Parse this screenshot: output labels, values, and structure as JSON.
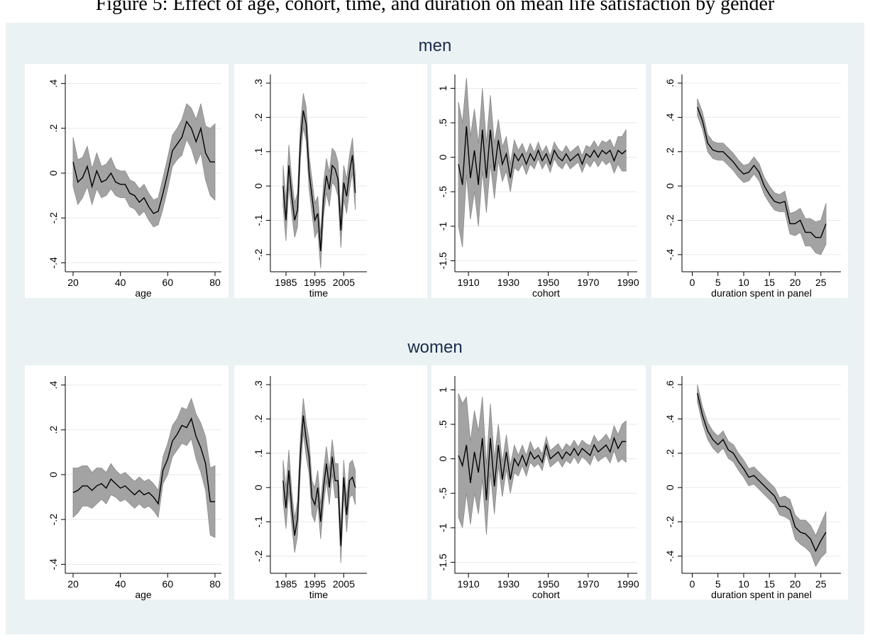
{
  "figure_title": "Figure 5: Effect of age, cohort, time, and duration on mean life satisfaction by gender",
  "row_titles": [
    "men",
    "women"
  ],
  "chart_data": [
    {
      "type": "line",
      "xlabel": "age",
      "color": "#000000",
      "band_color": "#a3a3a3",
      "grid": true,
      "x": [
        20,
        22,
        24,
        26,
        28,
        30,
        32,
        34,
        36,
        38,
        40,
        42,
        44,
        46,
        48,
        50,
        52,
        54,
        56,
        58,
        60,
        62,
        64,
        66,
        68,
        70,
        72,
        74,
        76,
        78,
        80
      ],
      "values": [
        0.05,
        -0.04,
        -0.02,
        0.03,
        -0.06,
        0.01,
        -0.04,
        -0.03,
        0.0,
        -0.04,
        -0.05,
        -0.05,
        -0.09,
        -0.1,
        -0.13,
        -0.11,
        -0.15,
        -0.18,
        -0.17,
        -0.09,
        0.0,
        0.1,
        0.13,
        0.16,
        0.23,
        0.2,
        0.14,
        0.2,
        0.09,
        0.05,
        0.05
      ],
      "error": [
        0.11,
        0.1,
        0.09,
        0.09,
        0.08,
        0.08,
        0.07,
        0.07,
        0.07,
        0.06,
        0.06,
        0.06,
        0.06,
        0.06,
        0.06,
        0.06,
        0.06,
        0.06,
        0.06,
        0.07,
        0.07,
        0.07,
        0.07,
        0.08,
        0.08,
        0.09,
        0.1,
        0.11,
        0.12,
        0.15,
        0.17
      ],
      "xlim": [
        16.7,
        82.7
      ],
      "xticks": [
        20,
        40,
        60,
        80
      ],
      "ylim": [
        -0.44,
        0.44
      ],
      "yticks": [
        {
          "value": 0.4,
          "label": ".4"
        },
        {
          "value": 0.2,
          "label": ".2"
        },
        0,
        {
          "value": -0.2,
          "label": "-.2"
        },
        {
          "value": -0.4,
          "label": "-.4"
        }
      ]
    },
    {
      "type": "line",
      "xlabel": "time",
      "color": "#000000",
      "band_color": "#a3a3a3",
      "grid": true,
      "x": [
        1984,
        1985,
        1986,
        1987,
        1988,
        1989,
        1990,
        1991,
        1992,
        1993,
        1994,
        1995,
        1996,
        1997,
        1998,
        1999,
        2000,
        2001,
        2002,
        2003,
        2004,
        2005,
        2006,
        2007,
        2008,
        2009
      ],
      "values": [
        0.0,
        -0.1,
        0.06,
        -0.03,
        -0.1,
        -0.07,
        0.13,
        0.22,
        0.18,
        0.04,
        -0.03,
        -0.1,
        -0.08,
        -0.19,
        -0.04,
        0.03,
        -0.01,
        0.06,
        0.05,
        0.02,
        -0.13,
        0.01,
        -0.03,
        0.04,
        0.09,
        -0.02
      ],
      "error": [
        0.06,
        0.06,
        0.06,
        0.05,
        0.05,
        0.05,
        0.05,
        0.05,
        0.05,
        0.05,
        0.05,
        0.05,
        0.05,
        0.05,
        0.05,
        0.05,
        0.05,
        0.05,
        0.05,
        0.05,
        0.05,
        0.05,
        0.05,
        0.05,
        0.05,
        0.05
      ],
      "xlim": [
        1979.6,
        2013
      ],
      "xticks": [
        1985,
        1995,
        2005
      ],
      "ylim": [
        -0.25,
        0.325
      ],
      "yticks": [
        {
          "value": 0.3,
          "label": ".3"
        },
        {
          "value": 0.2,
          "label": ".2"
        },
        {
          "value": 0.1,
          "label": ".1"
        },
        0,
        {
          "value": -0.1,
          "label": "-.1"
        },
        {
          "value": -0.2,
          "label": "-.2"
        }
      ]
    },
    {
      "type": "line",
      "xlabel": "cohort",
      "color": "#000000",
      "band_color": "#a3a3a3",
      "grid": true,
      "x": [
        1905,
        1907,
        1909,
        1911,
        1913,
        1915,
        1917,
        1919,
        1921,
        1923,
        1925,
        1927,
        1929,
        1931,
        1933,
        1935,
        1937,
        1939,
        1941,
        1943,
        1945,
        1947,
        1949,
        1951,
        1953,
        1955,
        1957,
        1959,
        1961,
        1963,
        1965,
        1967,
        1969,
        1971,
        1973,
        1975,
        1977,
        1979,
        1981,
        1983,
        1985,
        1987,
        1989
      ],
      "values": [
        -0.1,
        -0.4,
        0.45,
        -0.3,
        0.1,
        -0.4,
        0.4,
        -0.3,
        0.4,
        -0.2,
        0.25,
        -0.1,
        0.05,
        -0.3,
        0.05,
        -0.05,
        0.05,
        -0.1,
        0.05,
        -0.05,
        0.1,
        -0.05,
        0.05,
        -0.1,
        0.1,
        0.0,
        -0.05,
        0.05,
        -0.05,
        0.0,
        0.05,
        -0.1,
        0.05,
        0.0,
        0.1,
        0.0,
        0.1,
        0.05,
        0.1,
        -0.05,
        0.1,
        0.05,
        0.1
      ],
      "error": [
        0.9,
        0.9,
        0.7,
        0.6,
        0.6,
        0.6,
        0.6,
        0.5,
        0.5,
        0.4,
        0.3,
        0.25,
        0.25,
        0.2,
        0.2,
        0.15,
        0.15,
        0.15,
        0.15,
        0.12,
        0.12,
        0.12,
        0.12,
        0.12,
        0.12,
        0.12,
        0.12,
        0.12,
        0.12,
        0.12,
        0.12,
        0.12,
        0.12,
        0.14,
        0.14,
        0.14,
        0.14,
        0.16,
        0.16,
        0.18,
        0.2,
        0.25,
        0.3
      ],
      "xlim": [
        1903.2,
        1994.6
      ],
      "xticks": [
        1910,
        1930,
        1950,
        1970,
        1990
      ],
      "ylim": [
        -1.66,
        1.2
      ],
      "yticks": [
        1,
        {
          "value": 0.5,
          "label": ".5"
        },
        0,
        {
          "value": -0.5,
          "label": "-.5"
        },
        -1,
        {
          "value": -1.5,
          "label": "-1.5"
        }
      ]
    },
    {
      "type": "line",
      "xlabel": "duration spent in panel",
      "color": "#000000",
      "band_color": "#a3a3a3",
      "grid": true,
      "x": [
        1,
        2,
        3,
        4,
        5,
        6,
        7,
        8,
        9,
        10,
        11,
        12,
        13,
        14,
        15,
        16,
        17,
        18,
        19,
        20,
        21,
        22,
        23,
        24,
        25,
        26
      ],
      "values": [
        0.46,
        0.38,
        0.25,
        0.21,
        0.2,
        0.2,
        0.17,
        0.14,
        0.1,
        0.07,
        0.08,
        0.12,
        0.08,
        0.0,
        -0.05,
        -0.09,
        -0.1,
        -0.09,
        -0.22,
        -0.22,
        -0.2,
        -0.27,
        -0.27,
        -0.3,
        -0.3,
        -0.22
      ],
      "error": [
        0.05,
        0.05,
        0.05,
        0.05,
        0.05,
        0.05,
        0.05,
        0.05,
        0.05,
        0.05,
        0.05,
        0.05,
        0.05,
        0.05,
        0.05,
        0.05,
        0.05,
        0.06,
        0.06,
        0.07,
        0.07,
        0.08,
        0.08,
        0.09,
        0.1,
        0.12
      ],
      "xlim": [
        -2,
        28.9
      ],
      "xticks": [
        0,
        5,
        10,
        15,
        20,
        25
      ],
      "ylim": [
        -0.5,
        0.65
      ],
      "yticks": [
        {
          "value": 0.6,
          "label": ".6"
        },
        {
          "value": 0.4,
          "label": ".4"
        },
        {
          "value": 0.2,
          "label": ".2"
        },
        0,
        {
          "value": -0.2,
          "label": "-.2"
        },
        {
          "value": -0.4,
          "label": "-.4"
        }
      ]
    },
    {
      "type": "line",
      "xlabel": "age",
      "color": "#000000",
      "band_color": "#a3a3a3",
      "grid": true,
      "x": [
        20,
        22,
        24,
        26,
        28,
        30,
        32,
        34,
        36,
        38,
        40,
        42,
        44,
        46,
        48,
        50,
        52,
        54,
        56,
        58,
        60,
        62,
        64,
        66,
        68,
        70,
        72,
        74,
        76,
        78,
        80
      ],
      "values": [
        -0.08,
        -0.07,
        -0.05,
        -0.05,
        -0.07,
        -0.05,
        -0.04,
        -0.06,
        -0.02,
        -0.04,
        -0.06,
        -0.05,
        -0.07,
        -0.09,
        -0.07,
        -0.09,
        -0.08,
        -0.1,
        -0.13,
        0.02,
        0.07,
        0.15,
        0.18,
        0.22,
        0.21,
        0.25,
        0.17,
        0.12,
        0.05,
        -0.12,
        -0.12
      ],
      "error": [
        0.11,
        0.1,
        0.09,
        0.09,
        0.08,
        0.08,
        0.07,
        0.07,
        0.07,
        0.06,
        0.06,
        0.06,
        0.06,
        0.06,
        0.06,
        0.06,
        0.06,
        0.06,
        0.06,
        0.06,
        0.07,
        0.07,
        0.07,
        0.08,
        0.08,
        0.09,
        0.1,
        0.11,
        0.12,
        0.15,
        0.16
      ],
      "xlim": [
        16.7,
        82.7
      ],
      "xticks": [
        20,
        40,
        60,
        80
      ],
      "ylim": [
        -0.44,
        0.44
      ],
      "yticks": [
        {
          "value": 0.4,
          "label": ".4"
        },
        {
          "value": 0.2,
          "label": ".2"
        },
        0,
        {
          "value": -0.2,
          "label": "-.2"
        },
        {
          "value": -0.4,
          "label": "-.4"
        }
      ]
    },
    {
      "type": "line",
      "xlabel": "time",
      "color": "#000000",
      "band_color": "#a3a3a3",
      "grid": true,
      "x": [
        1984,
        1985,
        1986,
        1987,
        1988,
        1989,
        1990,
        1991,
        1992,
        1993,
        1994,
        1995,
        1996,
        1997,
        1998,
        1999,
        2000,
        2001,
        2002,
        2003,
        2004,
        2005,
        2006,
        2007,
        2008,
        2009
      ],
      "values": [
        0.02,
        -0.06,
        0.05,
        -0.06,
        -0.14,
        -0.09,
        0.1,
        0.21,
        0.14,
        0.09,
        -0.03,
        -0.05,
        0.0,
        -0.1,
        0.0,
        0.07,
        0.0,
        0.09,
        0.02,
        0.02,
        -0.17,
        0.03,
        -0.08,
        0.02,
        0.03,
        0.0
      ],
      "error": [
        0.06,
        0.06,
        0.06,
        0.05,
        0.05,
        0.05,
        0.05,
        0.05,
        0.05,
        0.05,
        0.05,
        0.05,
        0.05,
        0.05,
        0.05,
        0.05,
        0.05,
        0.05,
        0.05,
        0.05,
        0.05,
        0.05,
        0.05,
        0.05,
        0.05,
        0.05
      ],
      "xlim": [
        1979.6,
        2013
      ],
      "xticks": [
        1985,
        1995,
        2005
      ],
      "ylim": [
        -0.25,
        0.325
      ],
      "yticks": [
        {
          "value": 0.3,
          "label": ".3"
        },
        {
          "value": 0.2,
          "label": ".2"
        },
        {
          "value": 0.1,
          "label": ".1"
        },
        0,
        {
          "value": -0.1,
          "label": "-.1"
        },
        {
          "value": -0.2,
          "label": "-.2"
        }
      ]
    },
    {
      "type": "line",
      "xlabel": "cohort",
      "color": "#000000",
      "band_color": "#a3a3a3",
      "grid": true,
      "x": [
        1905,
        1907,
        1909,
        1911,
        1913,
        1915,
        1917,
        1919,
        1921,
        1923,
        1925,
        1927,
        1929,
        1931,
        1933,
        1935,
        1937,
        1939,
        1941,
        1943,
        1945,
        1947,
        1949,
        1951,
        1953,
        1955,
        1957,
        1959,
        1961,
        1963,
        1965,
        1967,
        1969,
        1971,
        1973,
        1975,
        1977,
        1979,
        1981,
        1983,
        1985,
        1987,
        1989
      ],
      "values": [
        0.05,
        -0.1,
        0.2,
        -0.35,
        0.1,
        -0.2,
        0.3,
        -0.6,
        0.3,
        -0.4,
        0.2,
        -0.3,
        0.1,
        -0.3,
        0.0,
        -0.1,
        0.05,
        -0.1,
        0.1,
        0.0,
        0.05,
        -0.05,
        0.2,
        0.0,
        0.05,
        0.1,
        0.0,
        0.1,
        0.05,
        0.15,
        0.05,
        0.15,
        0.1,
        0.05,
        0.2,
        0.1,
        0.15,
        0.2,
        0.1,
        0.3,
        0.15,
        0.25,
        0.25
      ],
      "error": [
        0.9,
        0.9,
        0.7,
        0.6,
        0.6,
        0.6,
        0.6,
        0.5,
        0.5,
        0.4,
        0.3,
        0.25,
        0.25,
        0.2,
        0.2,
        0.15,
        0.15,
        0.15,
        0.15,
        0.12,
        0.12,
        0.12,
        0.12,
        0.12,
        0.12,
        0.12,
        0.12,
        0.12,
        0.12,
        0.12,
        0.12,
        0.12,
        0.12,
        0.14,
        0.14,
        0.14,
        0.14,
        0.16,
        0.16,
        0.18,
        0.2,
        0.25,
        0.3
      ],
      "xlim": [
        1903.2,
        1994.6
      ],
      "xticks": [
        1910,
        1930,
        1950,
        1970,
        1990
      ],
      "ylim": [
        -1.66,
        1.2
      ],
      "yticks": [
        1,
        {
          "value": 0.5,
          "label": ".5"
        },
        0,
        {
          "value": -0.5,
          "label": "-.5"
        },
        -1,
        {
          "value": -1.5,
          "label": "-1.5"
        }
      ]
    },
    {
      "type": "line",
      "xlabel": "duration spent in panel",
      "color": "#000000",
      "band_color": "#a3a3a3",
      "grid": true,
      "x": [
        1,
        2,
        3,
        4,
        5,
        6,
        7,
        8,
        9,
        10,
        11,
        12,
        13,
        14,
        15,
        16,
        17,
        18,
        19,
        20,
        21,
        22,
        23,
        24,
        25,
        26
      ],
      "values": [
        0.55,
        0.42,
        0.33,
        0.28,
        0.25,
        0.28,
        0.22,
        0.2,
        0.15,
        0.11,
        0.06,
        0.07,
        0.04,
        0.01,
        -0.02,
        -0.05,
        -0.11,
        -0.11,
        -0.13,
        -0.23,
        -0.26,
        -0.27,
        -0.3,
        -0.37,
        -0.31,
        -0.26
      ],
      "error": [
        0.05,
        0.05,
        0.05,
        0.05,
        0.05,
        0.05,
        0.05,
        0.05,
        0.05,
        0.05,
        0.05,
        0.05,
        0.05,
        0.05,
        0.05,
        0.05,
        0.05,
        0.06,
        0.06,
        0.07,
        0.07,
        0.08,
        0.08,
        0.09,
        0.1,
        0.12
      ],
      "xlim": [
        -2,
        28.9
      ],
      "xticks": [
        0,
        5,
        10,
        15,
        20,
        25
      ],
      "ylim": [
        -0.5,
        0.65
      ],
      "yticks": [
        {
          "value": 0.6,
          "label": ".6"
        },
        {
          "value": 0.4,
          "label": ".4"
        },
        {
          "value": 0.2,
          "label": ".2"
        },
        0,
        {
          "value": -0.2,
          "label": "-.2"
        },
        {
          "value": -0.4,
          "label": "-.4"
        }
      ]
    }
  ]
}
